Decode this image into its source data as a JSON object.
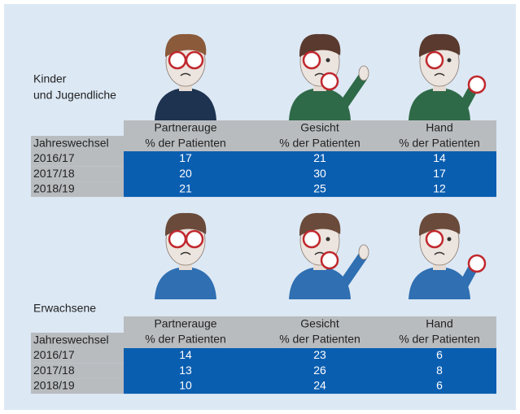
{
  "sections": [
    {
      "label": [
        "Kinder",
        "und Jugendliche"
      ],
      "table": {
        "corner": "Jahreswechsel",
        "columns": [
          {
            "title": "Partnerauge",
            "subtitle": "% der Patienten"
          },
          {
            "title": "Gesicht",
            "subtitle": "% der Patienten"
          },
          {
            "title": "Hand",
            "subtitle": "% der Patienten"
          }
        ],
        "rows": [
          {
            "year": "2016/17",
            "values": [
              17,
              21,
              14
            ]
          },
          {
            "year": "2017/18",
            "values": [
              20,
              30,
              17
            ]
          },
          {
            "year": "2018/19",
            "values": [
              21,
              25,
              12
            ]
          }
        ]
      }
    },
    {
      "label": [
        "Erwachsene"
      ],
      "table": {
        "corner": "Jahreswechsel",
        "columns": [
          {
            "title": "Partnerauge",
            "subtitle": "% der Patienten"
          },
          {
            "title": "Gesicht",
            "subtitle": "% der Patienten"
          },
          {
            "title": "Hand",
            "subtitle": "% der Patienten"
          }
        ],
        "rows": [
          {
            "year": "2016/17",
            "values": [
              14,
              23,
              6
            ]
          },
          {
            "year": "2017/18",
            "values": [
              13,
              26,
              8
            ]
          },
          {
            "year": "2018/19",
            "values": [
              10,
              24,
              6
            ]
          }
        ]
      }
    }
  ]
}
